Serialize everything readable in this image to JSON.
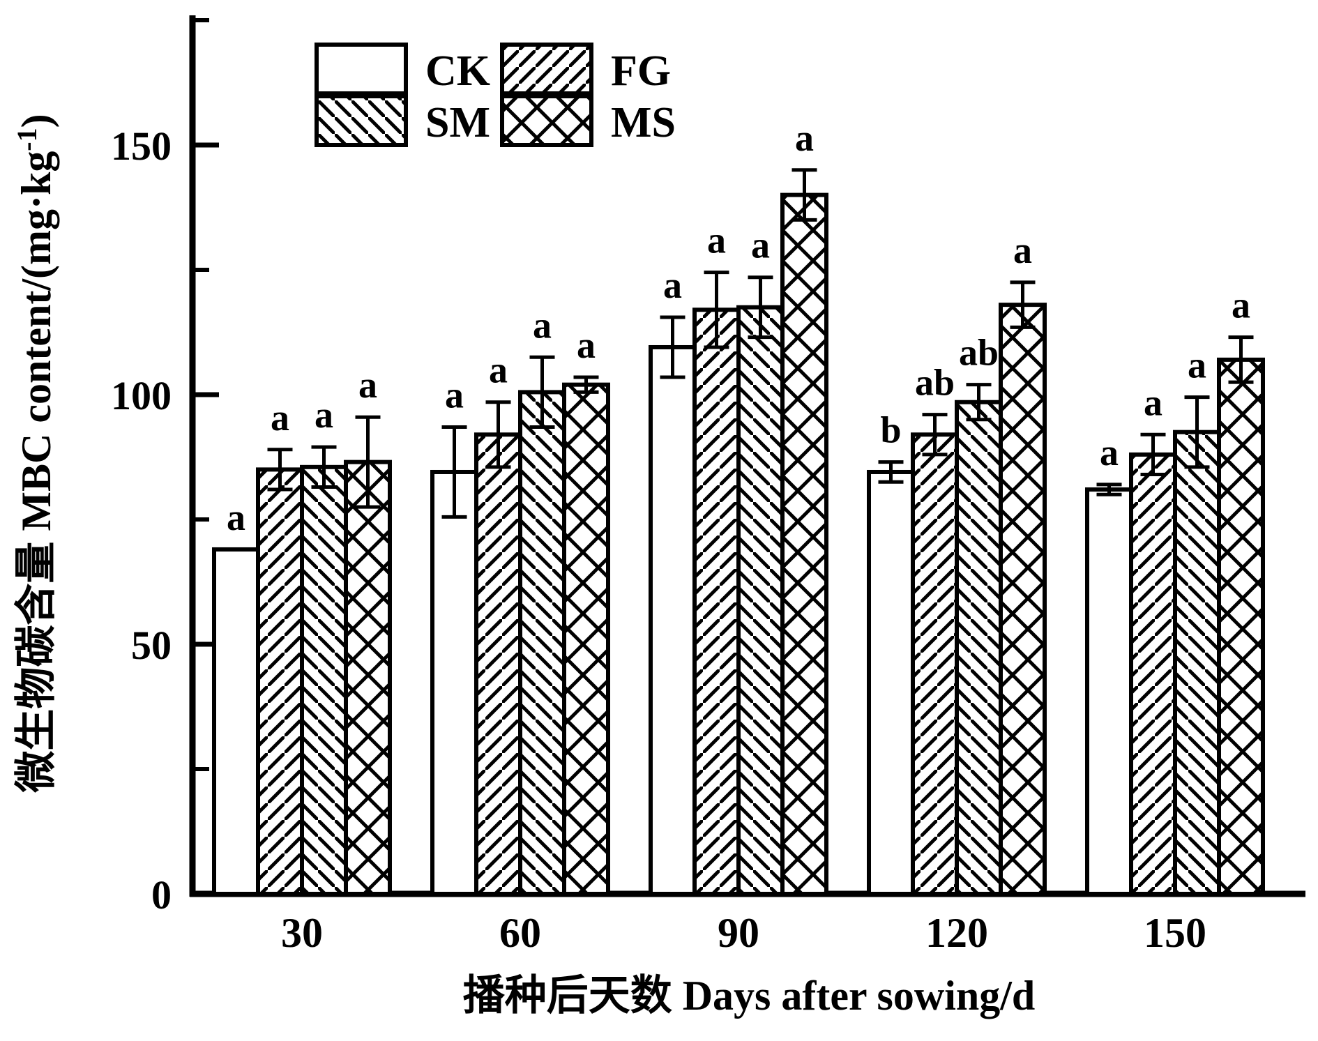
{
  "figure": {
    "x_axis_title": "播种后天数 Days after sowing/d",
    "y_axis_title_main": "微生物碳含量 MBC content/(mg·kg",
    "y_axis_title_sup": "-1",
    "y_axis_title_close": ")",
    "colors": {
      "ink": "#000000",
      "background": "#ffffff"
    }
  },
  "chart_data": {
    "type": "bar",
    "title": "",
    "xlabel": "播种后天数 Days after sowing/d",
    "ylabel": "微生物碳含量 MBC content/(mg·kg⁻¹)",
    "categories": [
      "30",
      "60",
      "90",
      "120",
      "150"
    ],
    "ylim": [
      0,
      175
    ],
    "y_ticks_major": [
      0,
      50,
      100,
      150
    ],
    "y_ticks_minor": [
      25,
      75,
      125,
      175
    ],
    "grid": false,
    "legend_position": "upper-left-inside",
    "legend_order": [
      "CK",
      "FG",
      "SM",
      "MS"
    ],
    "series": [
      {
        "name": "CK",
        "hatch": "none",
        "values": [
          69,
          84.5,
          109.5,
          84.5,
          81
        ],
        "errors": [
          0,
          9,
          6,
          2,
          1
        ],
        "letters": [
          "a",
          "a",
          "a",
          "b",
          "a"
        ]
      },
      {
        "name": "FG",
        "hatch": "forward-diagonal",
        "values": [
          85,
          92,
          117,
          92,
          88
        ],
        "errors": [
          4,
          6.5,
          7.5,
          4,
          4
        ],
        "letters": [
          "a",
          "a",
          "a",
          "ab",
          "a"
        ]
      },
      {
        "name": "SM",
        "hatch": "backward-diagonal",
        "values": [
          85.5,
          100.5,
          117.5,
          98.5,
          92.5
        ],
        "errors": [
          4,
          7,
          6,
          3.5,
          7
        ],
        "letters": [
          "a",
          "a",
          "a",
          "ab",
          "a"
        ]
      },
      {
        "name": "MS",
        "hatch": "crosshatch",
        "values": [
          86.5,
          102,
          140,
          118,
          107
        ],
        "errors": [
          9,
          1.5,
          5,
          4.5,
          4.5
        ],
        "letters": [
          "a",
          "a",
          "a",
          "a",
          "a"
        ]
      }
    ]
  }
}
